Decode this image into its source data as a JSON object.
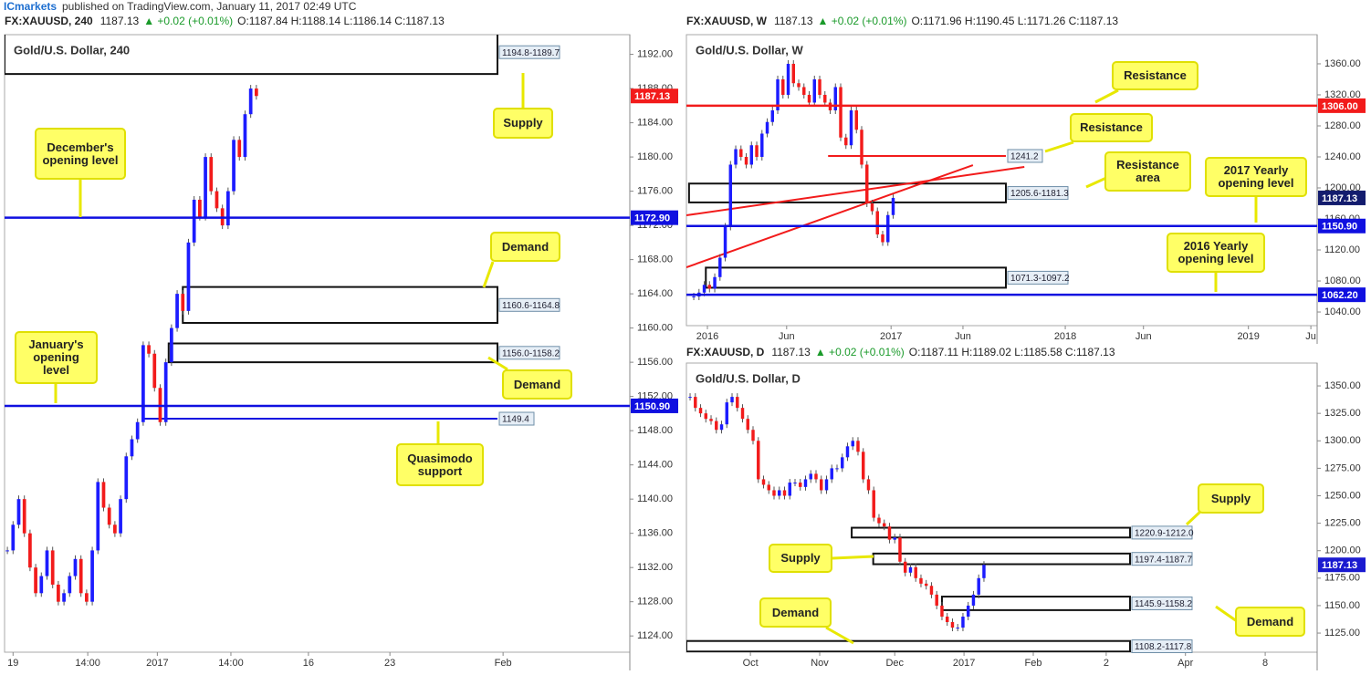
{
  "header": {
    "publisher": "ICmarkets",
    "published": "published on TradingView.com, January 11, 2017 02:49 UTC"
  },
  "chart_data": [
    {
      "type": "candlestick",
      "symbol": "FX:XAUUSD, 240",
      "last": "1187.13",
      "change": "▲ +0.02 (+0.01%)",
      "ohlc": "O:1187.84 H:1188.14 L:1186.14 C:1187.13",
      "title": "Gold/U.S. Dollar, 240",
      "values": [
        1134,
        1137,
        1140,
        1136,
        1132,
        1129,
        1131,
        1134,
        1130,
        1128,
        1129,
        1131,
        1133,
        1129,
        1128,
        1134,
        1142,
        1139,
        1137,
        1136,
        1140,
        1145,
        1147,
        1149,
        1158,
        1157,
        1153,
        1149,
        1156,
        1160,
        1164,
        1162,
        1170,
        1175,
        1173,
        1180,
        1176,
        1174,
        1172,
        1176,
        1182,
        1180,
        1185,
        1188,
        1187.13
      ],
      "xlim": [
        -0.5,
        110
      ],
      "xticks": [
        {
          "value": 1,
          "label": "19"
        },
        {
          "value": 14.2,
          "label": "14:00"
        },
        {
          "value": 26.5,
          "label": "2017"
        },
        {
          "value": 39.5,
          "label": "14:00"
        },
        {
          "value": 53.2,
          "label": "16"
        },
        {
          "value": 67.6,
          "label": "23"
        },
        {
          "value": 87.6,
          "label": "Feb"
        }
      ],
      "ylim": [
        1122.1,
        1194.3
      ],
      "yticks": [
        {
          "value": 1124,
          "label": "1124.00"
        },
        {
          "value": 1128,
          "label": "1128.00"
        },
        {
          "value": 1132,
          "label": "1132.00"
        },
        {
          "value": 1136,
          "label": "1136.00"
        },
        {
          "value": 1140,
          "label": "1140.00"
        },
        {
          "value": 1144,
          "label": "1144.00"
        },
        {
          "value": 1148,
          "label": "1148.00"
        },
        {
          "value": 1152,
          "label": "1152.00"
        },
        {
          "value": 1156,
          "label": "1156.00"
        },
        {
          "value": 1160,
          "label": "1160.00"
        },
        {
          "value": 1164,
          "label": "1164.00"
        },
        {
          "value": 1168,
          "label": "1168.00"
        },
        {
          "value": 1172,
          "label": "1172.00"
        },
        {
          "value": 1176,
          "label": "1176.00"
        },
        {
          "value": 1180,
          "label": "1180.00"
        },
        {
          "value": 1184,
          "label": "1184.00"
        },
        {
          "value": 1188,
          "label": "1188.00"
        },
        {
          "value": 1192,
          "label": "1192.00"
        }
      ],
      "last_price": 1187.13,
      "last_color": "#f21b1b",
      "up_color": "#1c1cff",
      "down_color": "#f21b1b",
      "levels": [
        {
          "value": 1172.9,
          "label": "1172.90",
          "color": "#1010e0"
        },
        {
          "value": 1150.9,
          "label": "1150.90",
          "color": "#1010e0"
        }
      ],
      "zones": [
        {
          "label": "1194.8-1189.7",
          "high": 1194.8,
          "low": 1189.7,
          "from": -0.5
        },
        {
          "label": "1160.6-1164.8",
          "high": 1164.8,
          "low": 1160.6,
          "from": 31
        },
        {
          "label": "1156.0-1158.2",
          "high": 1158.2,
          "low": 1156.0,
          "from": 28.5
        }
      ],
      "lines": [
        {
          "label": "1149.4",
          "value": 1149.4,
          "from": 23.7,
          "color": "#1010e0"
        }
      ],
      "trendlines": [],
      "annotations": [
        "Supply",
        "December's opening level",
        "Demand",
        "Demand",
        "January's opening level",
        "Quasimodo support"
      ]
    },
    {
      "type": "candlestick",
      "symbol": "FX:XAUUSD, W",
      "last": "1187.13",
      "change": "▲ +0.02 (+0.01%)",
      "ohlc": "O:1171.96 H:1190.45 L:1171.26 C:1187.13",
      "title": "Gold/U.S. Dollar, W",
      "values": [
        1060,
        1065,
        1075,
        1070,
        1085,
        1110,
        1150,
        1230,
        1250,
        1240,
        1230,
        1255,
        1240,
        1270,
        1285,
        1300,
        1340,
        1320,
        1360,
        1335,
        1330,
        1320,
        1310,
        1340,
        1320,
        1310,
        1300,
        1330,
        1265,
        1255,
        1300,
        1275,
        1230,
        1180,
        1170,
        1140,
        1130,
        1165,
        1187.13
      ],
      "xlim": [
        -1.4,
        118.8
      ],
      "xticks": [
        {
          "value": 2.6,
          "label": "2016"
        },
        {
          "value": 17.7,
          "label": "Jun"
        },
        {
          "value": 37.6,
          "label": "2017"
        },
        {
          "value": 51.3,
          "label": "Jun"
        },
        {
          "value": 70.8,
          "label": "2018"
        },
        {
          "value": 85.7,
          "label": "Jun"
        },
        {
          "value": 105.7,
          "label": "2019"
        },
        {
          "value": 117.6,
          "label": "Ju"
        }
      ],
      "ylim": [
        1022.4,
        1397.6
      ],
      "yticks": [
        {
          "value": 1040,
          "label": "1040.00"
        },
        {
          "value": 1080,
          "label": "1080.00"
        },
        {
          "value": 1120,
          "label": "1120.00"
        },
        {
          "value": 1160,
          "label": "1160.00"
        },
        {
          "value": 1200,
          "label": "1200.00"
        },
        {
          "value": 1240,
          "label": "1240.00"
        },
        {
          "value": 1280,
          "label": "1280.00"
        },
        {
          "value": 1320,
          "label": "1320.00"
        },
        {
          "value": 1360,
          "label": "1360.00"
        }
      ],
      "last_price": 1187.13,
      "last_color": "#131c6e",
      "up_color": "#1c1cff",
      "down_color": "#f21b1b",
      "levels": [
        {
          "value": 1306,
          "label": "1306.00",
          "color": "#f21b1b"
        },
        {
          "value": 1150.9,
          "label": "1150.90",
          "color": "#1010e0"
        },
        {
          "value": 1062.2,
          "label": "1062.20",
          "color": "#1010e0"
        }
      ],
      "zones": [
        {
          "label": "1205.6-1181.3",
          "high": 1205.6,
          "low": 1181.3,
          "from": -0.9
        },
        {
          "label": "1071.3-1097.2",
          "high": 1097.2,
          "low": 1071.3,
          "from": 2.3
        }
      ],
      "lines": [
        {
          "label": "1241.2",
          "value": 1241.2,
          "from": 25.6,
          "color": "#f21b1b"
        }
      ],
      "trendlines": [
        {
          "from": -1.4,
          "start": 1164.7,
          "to": 63,
          "end": 1227
        },
        {
          "from": -1.4,
          "start": 1097.6,
          "to": 53.2,
          "end": 1229.4
        }
      ],
      "annotations": [
        "Resistance",
        "Resistance",
        "Resistance area",
        "2017 Yearly opening level",
        "2016 Yearly opening level"
      ]
    },
    {
      "type": "candlestick",
      "symbol": "FX:XAUUSD, D",
      "last": "1187.13",
      "change": "▲ +0.02 (+0.01%)",
      "ohlc": "O:1187.11 H:1189.02 L:1185.58 C:1187.13",
      "title": "Gold/U.S. Dollar, D",
      "values": [
        1340,
        1330,
        1325,
        1320,
        1318,
        1310,
        1315,
        1335,
        1340,
        1330,
        1320,
        1310,
        1300,
        1265,
        1260,
        1255,
        1250,
        1255,
        1250,
        1262,
        1262,
        1258,
        1265,
        1270,
        1265,
        1255,
        1265,
        1275,
        1275,
        1285,
        1295,
        1300,
        1290,
        1265,
        1255,
        1230,
        1225,
        1222,
        1210,
        1212,
        1190,
        1180,
        1185,
        1175,
        1170,
        1168,
        1160,
        1150,
        1140,
        1135,
        1130,
        1130,
        1140,
        1150,
        1160,
        1175,
        1187.13
      ],
      "xlim": [
        -0.7,
        119.5
      ],
      "xticks": [
        {
          "value": 11.5,
          "label": "Oct"
        },
        {
          "value": 24.7,
          "label": "Nov"
        },
        {
          "value": 39,
          "label": "Dec"
        },
        {
          "value": 52.2,
          "label": "2017"
        },
        {
          "value": 65.4,
          "label": "Feb"
        },
        {
          "value": 79.3,
          "label": "2"
        },
        {
          "value": 94.4,
          "label": "Apr"
        },
        {
          "value": 109.6,
          "label": "8"
        }
      ],
      "ylim": [
        1107.6,
        1370.8
      ],
      "yticks": [
        {
          "value": 1125,
          "label": "1125.00"
        },
        {
          "value": 1150,
          "label": "1150.00"
        },
        {
          "value": 1175,
          "label": "1175.00"
        },
        {
          "value": 1200,
          "label": "1200.00"
        },
        {
          "value": 1225,
          "label": "1225.00"
        },
        {
          "value": 1250,
          "label": "1250.00"
        },
        {
          "value": 1275,
          "label": "1275.00"
        },
        {
          "value": 1300,
          "label": "1300.00"
        },
        {
          "value": 1325,
          "label": "1325.00"
        },
        {
          "value": 1350,
          "label": "1350.00"
        }
      ],
      "last_price": 1187.13,
      "last_color": "#1a1ad0",
      "up_color": "#1c1cff",
      "down_color": "#f21b1b",
      "levels": [],
      "zones": [
        {
          "label": "1220.9-1212.0",
          "high": 1220.9,
          "low": 1212.0,
          "from": 30.8
        },
        {
          "label": "1197.4-1187.7",
          "high": 1197.4,
          "low": 1187.7,
          "from": 34.9
        },
        {
          "label": "1145.9-1158.2",
          "high": 1158.2,
          "low": 1145.9,
          "from": 48
        },
        {
          "label": "1108.2-1117.8",
          "high": 1117.8,
          "low": 1108.2,
          "from": -0.7
        }
      ],
      "lines": [],
      "trendlines": [],
      "annotations": [
        "Supply",
        "Supply",
        "Demand",
        "Demand"
      ]
    }
  ]
}
